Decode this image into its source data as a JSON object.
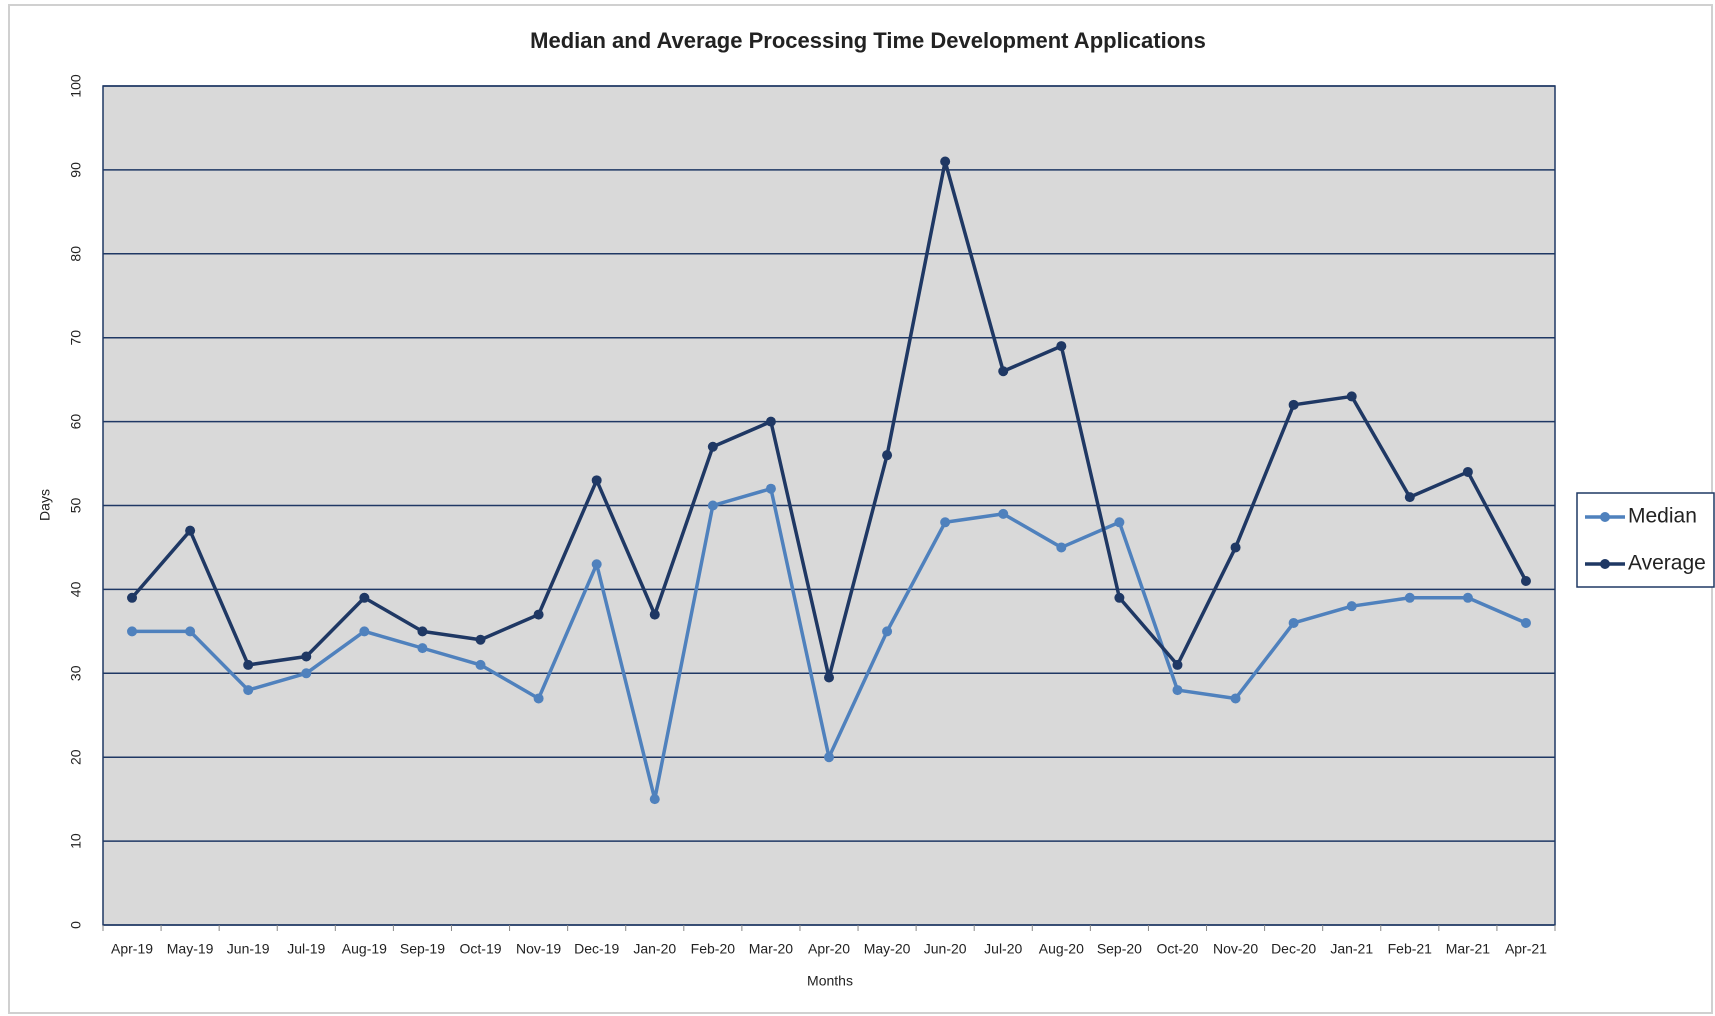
{
  "chart_data": {
    "type": "line",
    "title": "Median and Average Processing Time Development Applications",
    "x_label": "Months",
    "y_label": "Days",
    "categories": [
      "Apr-19",
      "May-19",
      "Jun-19",
      "Jul-19",
      "Aug-19",
      "Sep-19",
      "Oct-19",
      "Nov-19",
      "Dec-19",
      "Jan-20",
      "Feb-20",
      "Mar-20",
      "Apr-20",
      "May-20",
      "Jun-20",
      "Jul-20",
      "Aug-20",
      "Sep-20",
      "Oct-20",
      "Nov-20",
      "Dec-20",
      "Jan-21",
      "Feb-21",
      "Mar-21",
      "Apr-21"
    ],
    "series": [
      {
        "name": "Median",
        "color": "#4f81bd",
        "values": [
          35,
          35,
          28,
          30,
          35,
          33,
          31,
          27,
          43,
          15,
          50,
          52,
          20,
          35,
          48,
          49,
          45,
          48,
          28,
          27,
          36,
          38,
          39,
          39,
          36
        ]
      },
      {
        "name": "Average",
        "color": "#1f3864",
        "values": [
          39,
          47,
          31,
          32,
          39,
          35,
          34,
          37,
          53,
          37,
          57,
          60,
          29.5,
          56,
          91,
          66,
          69,
          39,
          31,
          45,
          62,
          63,
          51,
          54,
          41
        ]
      }
    ],
    "ylim": [
      0,
      100
    ],
    "yticks": [
      0,
      10,
      20,
      30,
      40,
      50,
      60,
      70,
      80,
      90,
      100
    ],
    "grid": true,
    "legend": "right"
  }
}
